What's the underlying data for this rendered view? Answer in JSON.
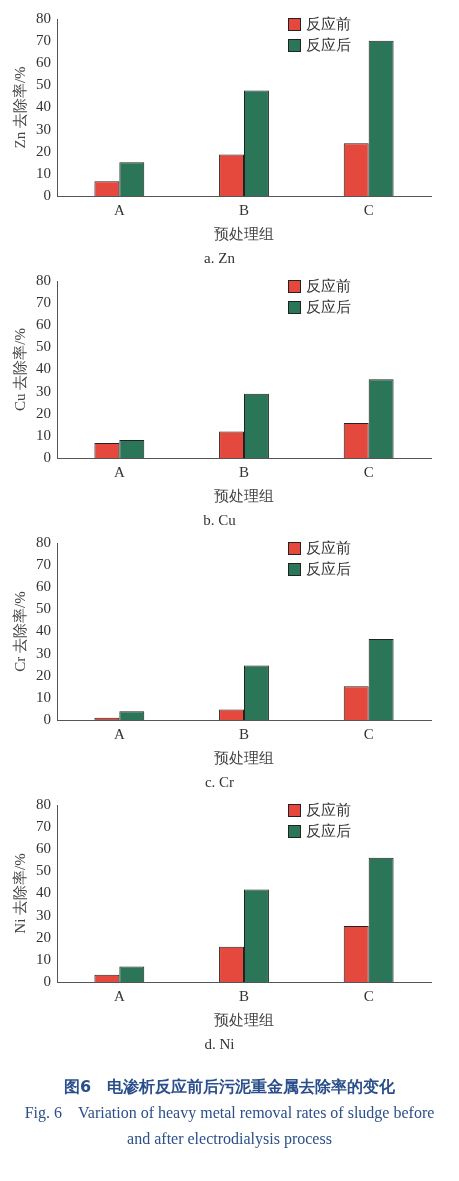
{
  "chart_data": [
    {
      "type": "bar",
      "title": "a. Zn",
      "xlabel": "预处理组",
      "ylabel": "Zn 去除率/%",
      "categories": [
        "A",
        "B",
        "C"
      ],
      "ylim": [
        0,
        80
      ],
      "yticks": [
        0,
        10,
        20,
        30,
        40,
        50,
        60,
        70,
        80
      ],
      "grid": false,
      "legend": "top right",
      "series": [
        {
          "name": "反应前",
          "color": "#e5483c",
          "values": [
            6.7,
            18.8,
            23.8
          ]
        },
        {
          "name": "反应后",
          "color": "#2b7658",
          "values": [
            15.3,
            47.7,
            70.2
          ]
        }
      ]
    },
    {
      "type": "bar",
      "title": "b. Cu",
      "xlabel": "预处理组",
      "ylabel": "Cu 去除率/%",
      "categories": [
        "A",
        "B",
        "C"
      ],
      "ylim": [
        0,
        80
      ],
      "yticks": [
        0,
        10,
        20,
        30,
        40,
        50,
        60,
        70,
        80
      ],
      "grid": false,
      "legend": "top right",
      "series": [
        {
          "name": "反应前",
          "color": "#e5483c",
          "values": [
            6.8,
            12,
            15.8
          ]
        },
        {
          "name": "反应后",
          "color": "#2b7658",
          "values": [
            8.1,
            29,
            35.6
          ]
        }
      ]
    },
    {
      "type": "bar",
      "title": "c. Cr",
      "xlabel": "预处理组",
      "ylabel": "Cr 去除率/%",
      "categories": [
        "A",
        "B",
        "C"
      ],
      "ylim": [
        0,
        80
      ],
      "yticks": [
        0,
        10,
        20,
        30,
        40,
        50,
        60,
        70,
        80
      ],
      "grid": false,
      "legend": "top right",
      "series": [
        {
          "name": "反应前",
          "color": "#e5483c",
          "values": [
            1,
            4.8,
            15.2
          ]
        },
        {
          "name": "反应后",
          "color": "#2b7658",
          "values": [
            3.9,
            24.6,
            36.6
          ]
        }
      ]
    },
    {
      "type": "bar",
      "title": "d. Ni",
      "xlabel": "预处理组",
      "ylabel": "Ni 去除率/%",
      "categories": [
        "A",
        "B",
        "C"
      ],
      "ylim": [
        0,
        80
      ],
      "yticks": [
        0,
        10,
        20,
        30,
        40,
        50,
        60,
        70,
        80
      ],
      "grid": false,
      "legend": "top right",
      "series": [
        {
          "name": "反应前",
          "color": "#e5483c",
          "values": [
            3.3,
            15.9,
            25.3
          ]
        },
        {
          "name": "反应后",
          "color": "#2b7658",
          "values": [
            7,
            41.8,
            56.2
          ]
        }
      ],
      "annotations": [
        "图6　电渗析反应前后污泥重金属去除率的变化",
        "Fig. 6　Variation of heavy metal removal rates of sludge before and after electrodialysis process"
      ]
    }
  ]
}
